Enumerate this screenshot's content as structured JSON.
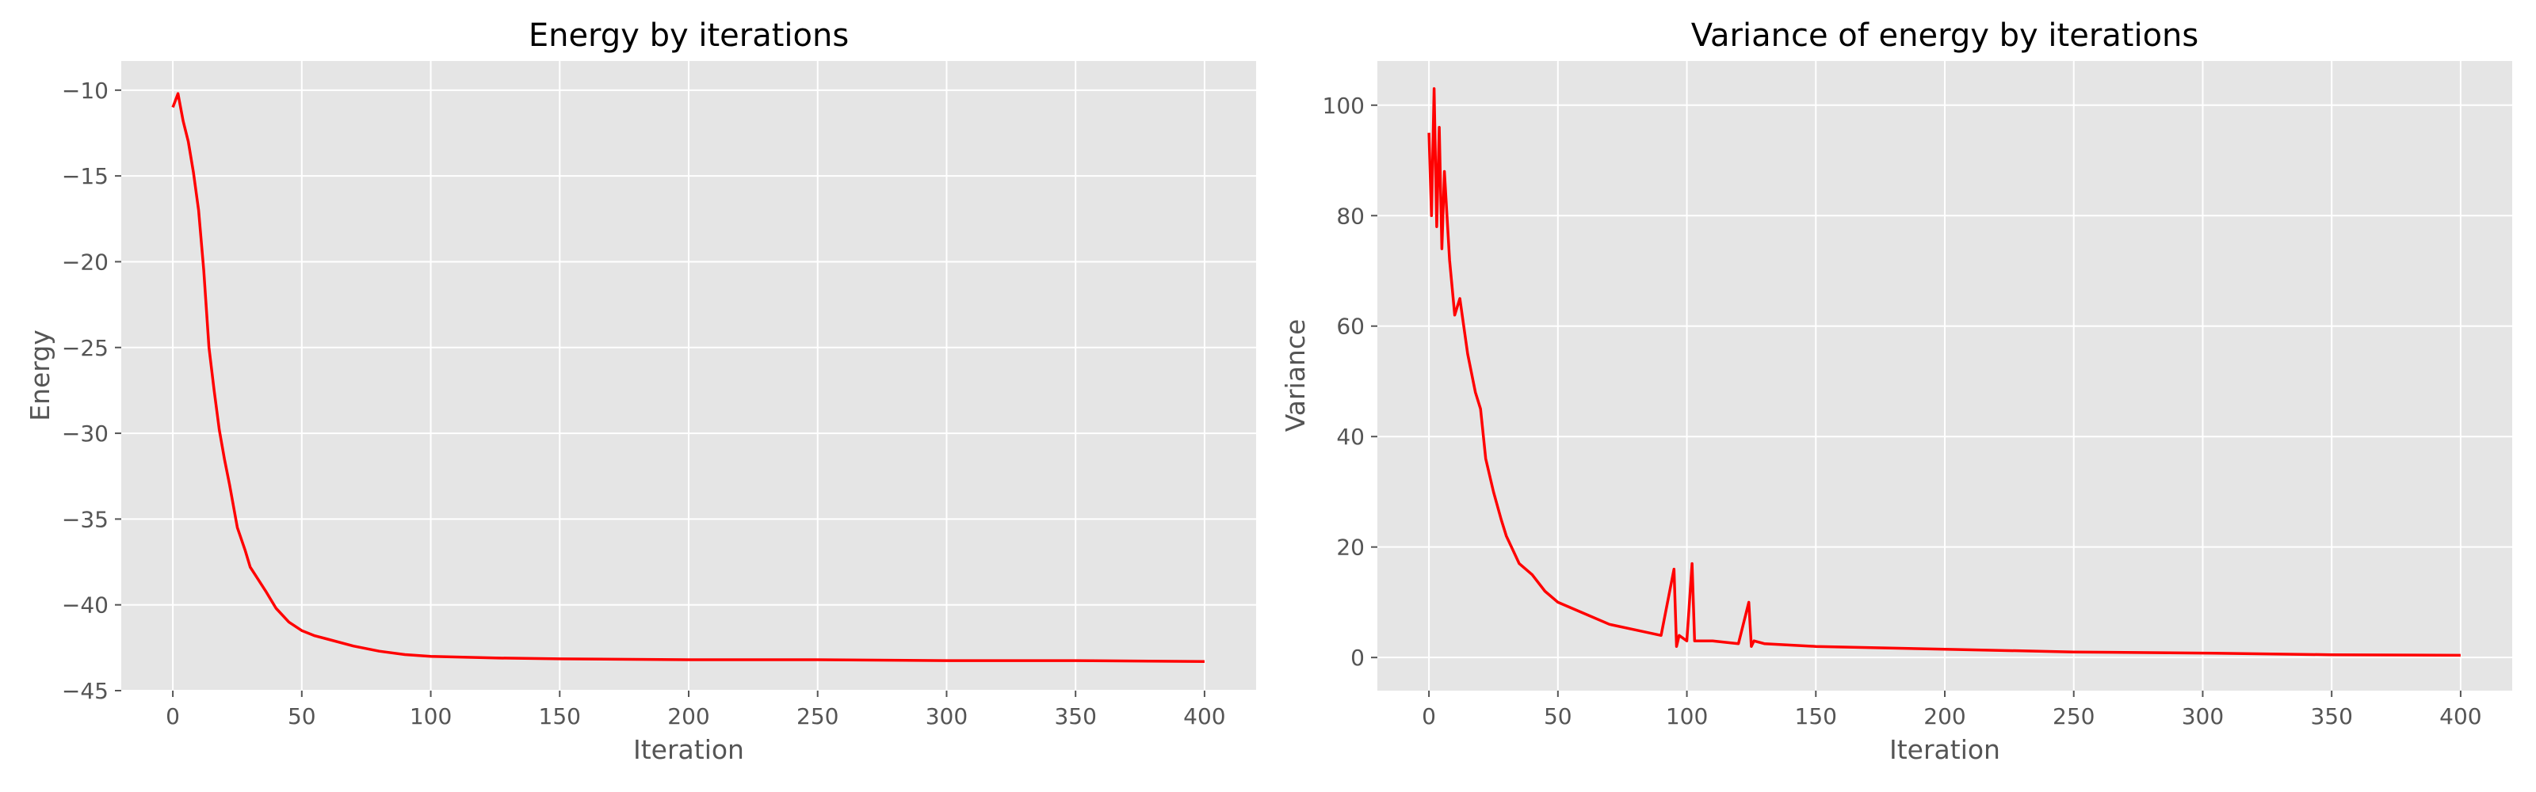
{
  "chart_data": [
    {
      "type": "line",
      "title": "Energy by iterations",
      "xlabel": "Iteration",
      "ylabel": "Energy",
      "xlim": [
        -20,
        420
      ],
      "ylim": [
        -45,
        -8.3
      ],
      "xticks": [
        0,
        50,
        100,
        150,
        200,
        250,
        300,
        350,
        400
      ],
      "yticks": [
        -45,
        -40,
        -35,
        -30,
        -25,
        -20,
        -15,
        -10
      ],
      "ytick_labels": [
        "−45",
        "−40",
        "−35",
        "−30",
        "−25",
        "−20",
        "−15",
        "−10"
      ],
      "grid": true,
      "series": [
        {
          "color": "#ff0000",
          "x": [
            0,
            2,
            4,
            6,
            8,
            10,
            12,
            14,
            16,
            18,
            20,
            22,
            25,
            28,
            30,
            33,
            36,
            40,
            45,
            50,
            55,
            60,
            70,
            80,
            90,
            100,
            125,
            150,
            200,
            250,
            300,
            350,
            400
          ],
          "y": [
            -11.0,
            -10.2,
            -11.8,
            -13.0,
            -14.8,
            -17.0,
            -20.5,
            -25.0,
            -27.5,
            -29.8,
            -31.5,
            -33.0,
            -35.5,
            -36.8,
            -37.8,
            -38.5,
            -39.2,
            -40.2,
            -41.0,
            -41.5,
            -41.8,
            -42.0,
            -42.4,
            -42.7,
            -42.9,
            -43.0,
            -43.1,
            -43.15,
            -43.2,
            -43.2,
            -43.25,
            -43.25,
            -43.3
          ]
        }
      ]
    },
    {
      "type": "line",
      "title": "Variance of energy by iterations",
      "xlabel": "Iteration",
      "ylabel": "Variance",
      "xlim": [
        -20,
        420
      ],
      "ylim": [
        -6,
        108
      ],
      "xticks": [
        0,
        50,
        100,
        150,
        200,
        250,
        300,
        350,
        400
      ],
      "yticks": [
        0,
        20,
        40,
        60,
        80,
        100
      ],
      "ytick_labels": [
        "0",
        "20",
        "40",
        "60",
        "80",
        "100"
      ],
      "grid": true,
      "series": [
        {
          "color": "#ff0000",
          "x": [
            0,
            1,
            2,
            3,
            4,
            5,
            6,
            8,
            10,
            12,
            15,
            18,
            20,
            22,
            25,
            28,
            30,
            35,
            40,
            45,
            50,
            55,
            60,
            70,
            80,
            90,
            95,
            96,
            97,
            100,
            102,
            103,
            104,
            110,
            120,
            124,
            125,
            126,
            130,
            150,
            200,
            250,
            300,
            350,
            400
          ],
          "y": [
            95,
            80,
            103,
            78,
            96,
            74,
            88,
            72,
            62,
            65,
            55,
            48,
            45,
            36,
            30,
            25,
            22,
            17,
            15,
            12,
            10,
            9,
            8,
            6,
            5,
            4,
            16,
            2,
            4,
            3,
            17,
            3,
            3,
            3,
            2.5,
            10,
            2,
            3,
            2.5,
            2,
            1.5,
            1,
            0.8,
            0.5,
            0.4
          ]
        }
      ]
    }
  ]
}
